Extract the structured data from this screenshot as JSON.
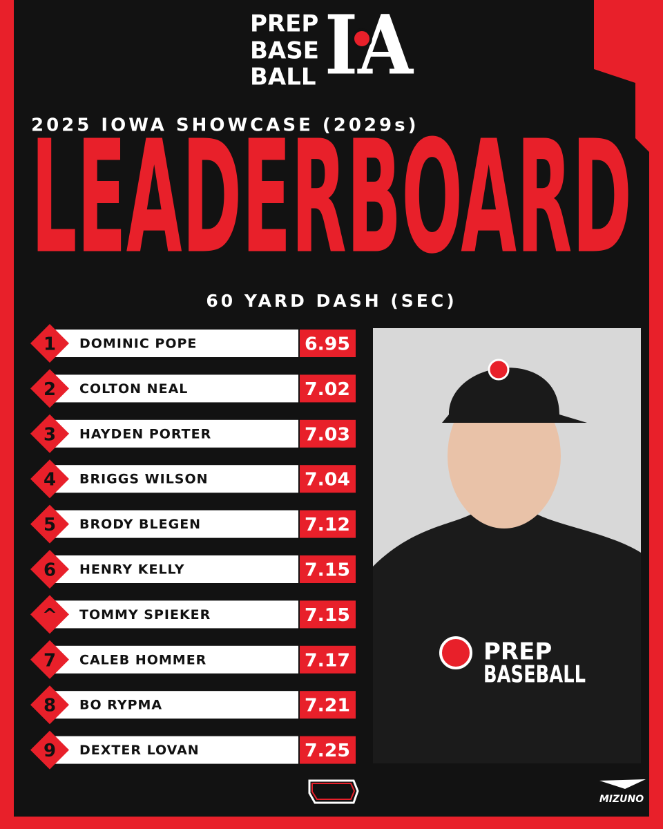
{
  "logo": {
    "lines": [
      "PREP",
      "BASE",
      "BALL"
    ],
    "mark": "IA"
  },
  "subtitle": "2025 IOWA SHOWCASE (2029s)",
  "title": "LEADERBOARD",
  "metric": "60 YARD DASH (SEC)",
  "rows": [
    {
      "rank": "1",
      "name": "DOMINIC POPE",
      "time": "6.95"
    },
    {
      "rank": "2",
      "name": "COLTON NEAL",
      "time": "7.02"
    },
    {
      "rank": "3",
      "name": "HAYDEN PORTER",
      "time": "7.03"
    },
    {
      "rank": "4",
      "name": "BRIGGS WILSON",
      "time": "7.04"
    },
    {
      "rank": "5",
      "name": "BRODY BLEGEN",
      "time": "7.12"
    },
    {
      "rank": "6",
      "name": "HENRY KELLY",
      "time": "7.15"
    },
    {
      "rank": "^",
      "name": "TOMMY SPIEKER",
      "time": "7.15"
    },
    {
      "rank": "7",
      "name": "CALEB HOMMER",
      "time": "7.17"
    },
    {
      "rank": "8",
      "name": "BO RYPMA",
      "time": "7.21"
    },
    {
      "rank": "9",
      "name": "DEXTER LOVAN",
      "time": "7.25"
    }
  ],
  "photo": {
    "shirt": [
      "PREP",
      "BASEBALL"
    ]
  },
  "sponsor": "MIZUNO"
}
